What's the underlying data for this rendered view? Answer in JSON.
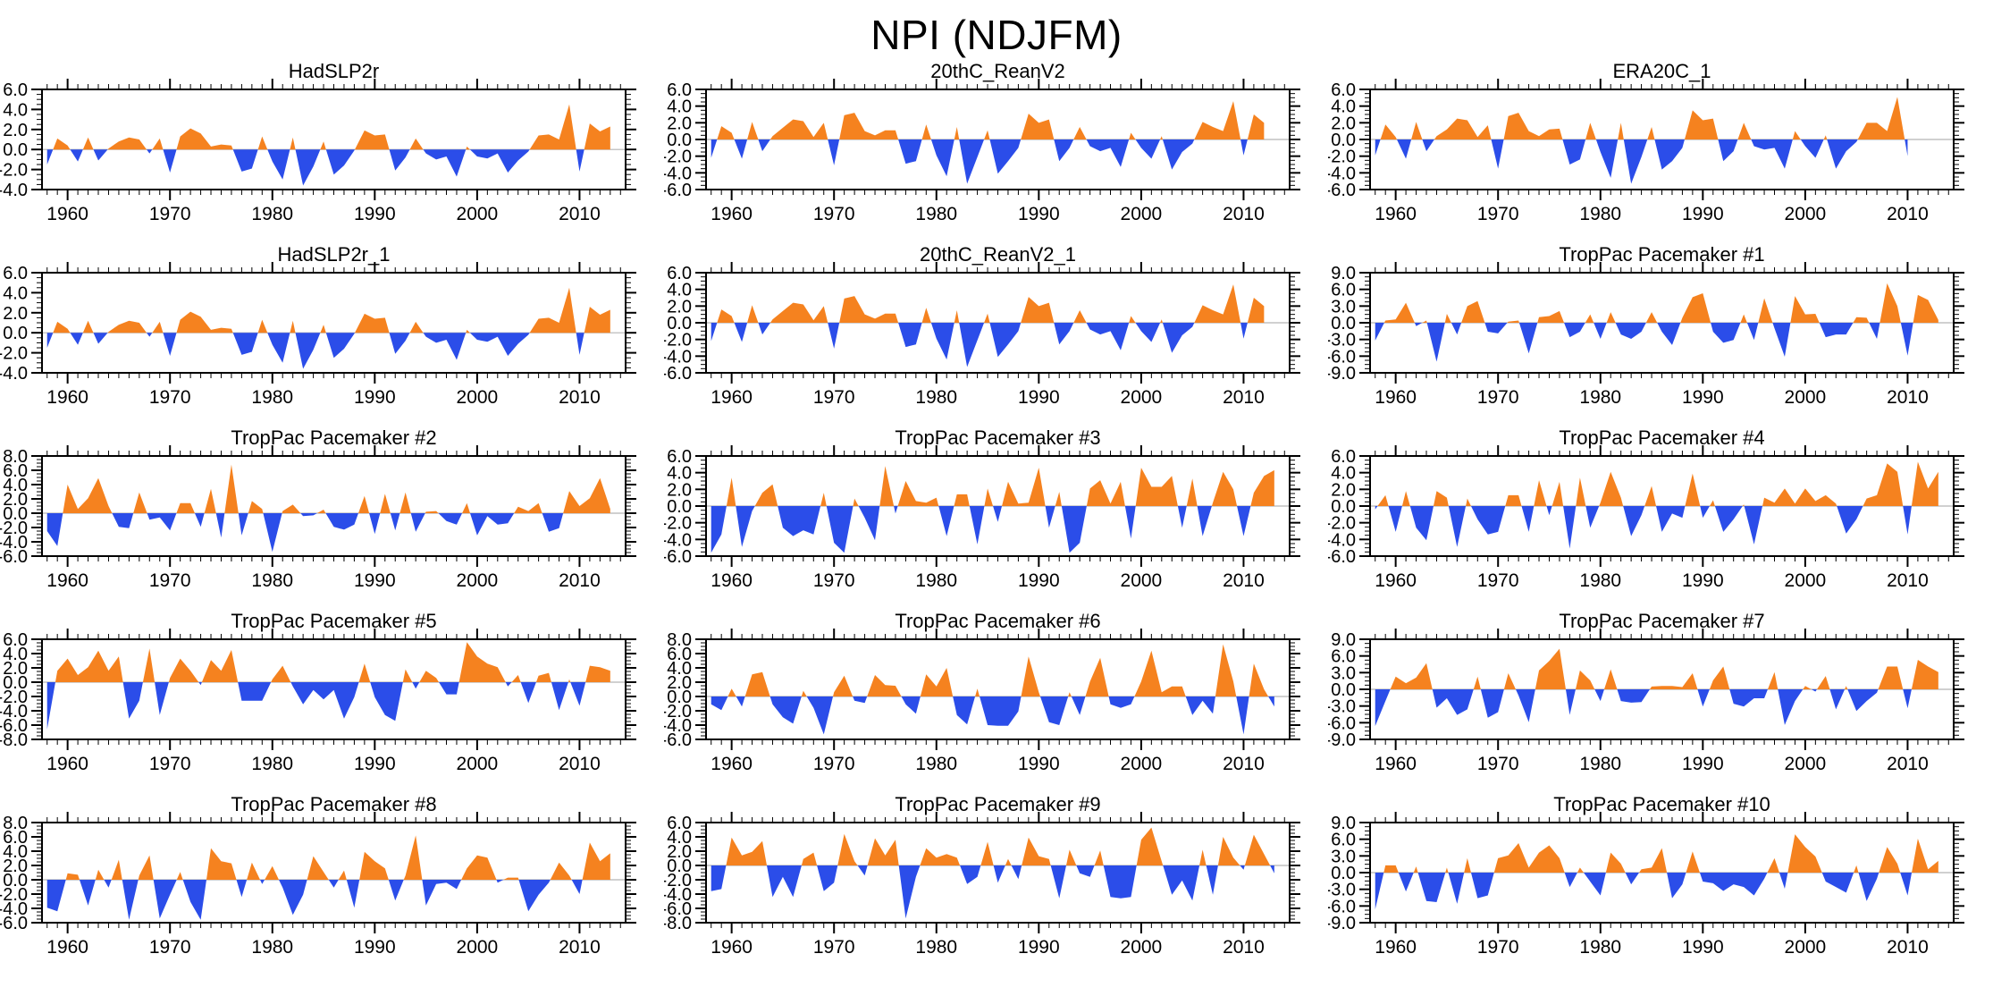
{
  "page_title": "NPI (NDJFM)",
  "colors": {
    "positive_fill": "#F5821F",
    "negative_fill": "#2B4DE9",
    "zero_line": "#b4b4b4",
    "frame": "#000000"
  },
  "axis": {
    "x_range": [
      1957.5,
      2014.5
    ],
    "x_major_ticks": [
      1960,
      1970,
      1980,
      1990,
      2000,
      2010
    ],
    "x_minor_step_years": 1
  },
  "chart_data": [
    {
      "type": "area",
      "title": "HadSLP2r",
      "start_year": 1958,
      "ylim": [
        -4,
        6
      ],
      "ytick_step": 2,
      "values": [
        -1.5,
        1.1,
        0.4,
        -1.2,
        1.2,
        -1.1,
        0.1,
        0.8,
        1.2,
        1.0,
        -0.4,
        1.1,
        -2.3,
        1.3,
        2.1,
        1.6,
        0.3,
        0.5,
        0.4,
        -2.2,
        -1.9,
        1.3,
        -1.2,
        -3.0,
        1.2,
        -3.6,
        -1.7,
        0.8,
        -2.5,
        -1.6,
        -0.1,
        1.9,
        1.4,
        1.5,
        -2.1,
        -0.8,
        1.1,
        -0.4,
        -1.0,
        -0.7,
        -2.7,
        0.3,
        -0.7,
        -0.9,
        -0.4,
        -2.3,
        -1.1,
        -0.2,
        1.4,
        1.5,
        1.0,
        4.5,
        -2.2,
        2.6,
        1.8,
        2.3
      ]
    },
    {
      "type": "area",
      "title": "20thC_ReanV2",
      "start_year": 1958,
      "ylim": [
        -6,
        6
      ],
      "ytick_step": 2,
      "values": [
        -2.2,
        1.6,
        0.8,
        -2.3,
        2.1,
        -1.4,
        0.4,
        1.4,
        2.4,
        2.2,
        0.3,
        2.0,
        -3.1,
        2.9,
        3.2,
        1.0,
        0.5,
        1.1,
        1.1,
        -2.9,
        -2.6,
        1.8,
        -1.9,
        -4.4,
        1.5,
        -5.3,
        -2.1,
        1.1,
        -4.1,
        -2.6,
        -1.0,
        3.1,
        2.0,
        2.4,
        -2.6,
        -1.0,
        1.5,
        -0.8,
        -1.4,
        -1.0,
        -3.3,
        0.8,
        -1.0,
        -2.3,
        0.4,
        -3.6,
        -1.5,
        -0.5,
        2.1,
        1.5,
        1.0,
        4.6,
        -1.9,
        3.0,
        2.0
      ]
    },
    {
      "type": "area",
      "title": "ERA20C_1",
      "start_year": 1958,
      "ylim": [
        -6,
        6
      ],
      "ytick_step": 2,
      "values": [
        -1.9,
        1.8,
        0.3,
        -2.3,
        2.1,
        -1.4,
        0.4,
        1.2,
        2.5,
        2.3,
        0.3,
        1.7,
        -3.5,
        2.8,
        3.2,
        1.0,
        0.4,
        1.2,
        1.3,
        -3.0,
        -2.4,
        2.0,
        -1.5,
        -4.6,
        2.0,
        -5.3,
        -2.1,
        1.5,
        -3.6,
        -2.6,
        -1.0,
        3.5,
        2.3,
        2.5,
        -2.6,
        -1.4,
        2.0,
        -0.8,
        -1.2,
        -1.0,
        -3.5,
        1.0,
        -0.8,
        -2.2,
        0.5,
        -3.5,
        -1.4,
        -0.3,
        2.0,
        2.0,
        1.0,
        5.1,
        -2.0
      ]
    },
    {
      "type": "area",
      "title": "HadSLP2r_1",
      "start_year": 1958,
      "ylim": [
        -4,
        6
      ],
      "ytick_step": 2,
      "values": [
        -1.5,
        1.1,
        0.4,
        -1.2,
        1.2,
        -1.1,
        0.1,
        0.8,
        1.2,
        1.0,
        -0.4,
        1.1,
        -2.3,
        1.3,
        2.1,
        1.6,
        0.3,
        0.5,
        0.4,
        -2.2,
        -1.9,
        1.3,
        -1.2,
        -3.0,
        1.2,
        -3.6,
        -1.7,
        0.8,
        -2.5,
        -1.6,
        -0.1,
        1.9,
        1.4,
        1.5,
        -2.1,
        -0.8,
        1.1,
        -0.4,
        -1.0,
        -0.7,
        -2.7,
        0.3,
        -0.7,
        -0.9,
        -0.4,
        -2.3,
        -1.1,
        -0.2,
        1.4,
        1.5,
        1.0,
        4.5,
        -2.2,
        2.6,
        1.8,
        2.3
      ]
    },
    {
      "type": "area",
      "title": "20thC_ReanV2_1",
      "start_year": 1958,
      "ylim": [
        -6,
        6
      ],
      "ytick_step": 2,
      "values": [
        -2.2,
        1.6,
        0.8,
        -2.3,
        2.1,
        -1.4,
        0.4,
        1.4,
        2.4,
        2.2,
        0.3,
        2.0,
        -3.1,
        2.9,
        3.2,
        1.0,
        0.5,
        1.1,
        1.1,
        -2.9,
        -2.6,
        1.8,
        -1.9,
        -4.4,
        1.5,
        -5.3,
        -2.1,
        1.1,
        -4.1,
        -2.6,
        -1.0,
        3.1,
        2.0,
        2.4,
        -2.6,
        -1.0,
        1.5,
        -0.8,
        -1.4,
        -1.0,
        -3.3,
        0.8,
        -1.0,
        -2.3,
        0.4,
        -3.6,
        -1.5,
        -0.5,
        2.1,
        1.5,
        1.0,
        4.6,
        -1.9,
        3.0,
        2.0
      ]
    },
    {
      "type": "area",
      "title": "TropPac Pacemaker #1",
      "start_year": 1958,
      "ylim": [
        -9,
        9
      ],
      "ytick_step": 3,
      "values": [
        -3.2,
        0.4,
        0.6,
        3.6,
        -0.6,
        0.4,
        -7.0,
        1.6,
        -2.1,
        3.0,
        3.9,
        -1.6,
        -1.9,
        0.2,
        0.4,
        -5.5,
        1.0,
        1.2,
        2.1,
        -2.6,
        -1.6,
        1.5,
        -2.9,
        1.9,
        -2.1,
        -2.9,
        -1.6,
        1.9,
        -1.6,
        -4.0,
        0.9,
        4.6,
        5.3,
        -1.6,
        -3.6,
        -3.1,
        1.5,
        -3.1,
        4.4,
        -1.0,
        -6.1,
        4.8,
        1.5,
        1.6,
        -2.6,
        -2.1,
        -2.1,
        1.0,
        0.9,
        -2.9,
        7.1,
        3.0,
        -5.9,
        5.0,
        4.1,
        0.5
      ]
    },
    {
      "type": "area",
      "title": "TropPac Pacemaker #2",
      "start_year": 1958,
      "ylim": [
        -6,
        8
      ],
      "ytick_step": 2,
      "values": [
        -2.5,
        -4.6,
        4.0,
        0.6,
        2.1,
        4.9,
        1.0,
        -1.9,
        -2.1,
        2.9,
        -0.9,
        -0.6,
        -2.4,
        1.4,
        1.4,
        -1.9,
        3.4,
        -3.4,
        6.8,
        -3.1,
        1.7,
        0.6,
        -5.4,
        0.3,
        1.2,
        -0.4,
        -0.3,
        0.5,
        -1.9,
        -2.3,
        -1.6,
        2.4,
        -2.9,
        2.7,
        -2.4,
        2.9,
        -2.6,
        0.2,
        0.3,
        -1.1,
        -1.6,
        1.4,
        -3.1,
        -0.4,
        -1.6,
        -1.4,
        0.9,
        0.3,
        1.4,
        -2.6,
        -2.1,
        3.1,
        1.0,
        2.1,
        4.9,
        0.6
      ]
    },
    {
      "type": "area",
      "title": "TropPac Pacemaker #3",
      "start_year": 1958,
      "ylim": [
        -6,
        6
      ],
      "ytick_step": 2,
      "values": [
        -5.6,
        -3.4,
        3.4,
        -4.9,
        -0.6,
        1.6,
        2.6,
        -2.6,
        -3.6,
        -2.9,
        -3.4,
        1.6,
        -4.4,
        -5.6,
        0.9,
        -1.4,
        -4.1,
        4.8,
        -0.9,
        3.0,
        0.6,
        0.4,
        1.0,
        -3.6,
        1.4,
        1.4,
        -4.6,
        2.1,
        -1.9,
        2.9,
        0.3,
        0.4,
        4.6,
        -2.6,
        1.7,
        -5.6,
        -4.4,
        2.1,
        3.1,
        0.3,
        2.9,
        -3.9,
        4.6,
        2.3,
        2.3,
        3.6,
        -2.6,
        3.3,
        -3.6,
        0.4,
        4.1,
        2.0,
        -3.6,
        1.6,
        3.6,
        4.3
      ]
    },
    {
      "type": "area",
      "title": "TropPac Pacemaker #4",
      "start_year": 1958,
      "ylim": [
        -6,
        6
      ],
      "ytick_step": 2,
      "values": [
        -0.4,
        1.3,
        -3.1,
        1.8,
        -2.6,
        -4.1,
        1.8,
        1.0,
        -4.9,
        0.9,
        -1.6,
        -3.4,
        -3.1,
        1.3,
        1.3,
        -3.1,
        3.1,
        -1.1,
        2.9,
        -5.1,
        3.4,
        -2.6,
        0.4,
        4.1,
        1.0,
        -3.6,
        -1.1,
        2.4,
        -3.1,
        -0.9,
        -1.4,
        3.9,
        -1.4,
        0.7,
        -3.1,
        -1.6,
        0.2,
        -4.6,
        1.0,
        0.4,
        2.1,
        0.3,
        2.1,
        0.6,
        1.3,
        0.3,
        -3.3,
        -1.6,
        0.9,
        1.3,
        5.1,
        4.1,
        -3.4,
        5.3,
        2.1,
        4.1
      ]
    },
    {
      "type": "area",
      "title": "TropPac Pacemaker #5",
      "start_year": 1958,
      "ylim": [
        -8,
        6
      ],
      "ytick_step": 2,
      "values": [
        -6.6,
        1.6,
        3.3,
        1.0,
        2.1,
        4.4,
        1.6,
        3.6,
        -5.1,
        -2.6,
        4.7,
        -4.6,
        0.6,
        3.3,
        1.6,
        -0.4,
        3.1,
        1.6,
        4.5,
        -2.6,
        -2.6,
        -2.6,
        0.4,
        2.3,
        -0.6,
        -3.1,
        -1.1,
        -2.4,
        -1.1,
        -5.1,
        -2.1,
        2.6,
        -2.1,
        -4.6,
        -5.4,
        1.8,
        -0.9,
        1.6,
        0.6,
        -1.7,
        -1.7,
        5.6,
        3.6,
        2.6,
        2.1,
        -0.6,
        1.0,
        -2.9,
        0.9,
        1.3,
        -3.9,
        0.4,
        -3.3,
        2.3,
        2.1,
        1.6
      ]
    },
    {
      "type": "area",
      "title": "TropPac Pacemaker #6",
      "start_year": 1958,
      "ylim": [
        -6,
        8
      ],
      "ytick_step": 2,
      "values": [
        -1.1,
        -1.9,
        1.1,
        -1.4,
        3.1,
        3.4,
        -1.1,
        -2.9,
        -3.8,
        0.8,
        -1.6,
        -5.3,
        0.6,
        2.9,
        -0.6,
        -0.9,
        3.0,
        1.6,
        1.5,
        -1.1,
        -2.4,
        3.1,
        1.4,
        4.0,
        -2.6,
        -3.9,
        1.1,
        -4.0,
        -4.1,
        -4.1,
        -2.1,
        5.6,
        0.6,
        -3.6,
        -4.0,
        0.6,
        -2.6,
        2.1,
        5.4,
        -1.1,
        -1.6,
        -1.1,
        2.1,
        6.4,
        0.6,
        1.4,
        1.4,
        -2.6,
        -0.6,
        -2.4,
        7.3,
        2.1,
        -5.3,
        4.6,
        1.0,
        -1.4
      ]
    },
    {
      "type": "area",
      "title": "TropPac Pacemaker #7",
      "start_year": 1958,
      "ylim": [
        -9,
        9
      ],
      "ytick_step": 3,
      "values": [
        -6.6,
        -2.1,
        2.3,
        1.1,
        2.1,
        4.7,
        -3.3,
        -1.6,
        -4.6,
        -3.6,
        2.3,
        -5.1,
        -4.1,
        2.9,
        -1.1,
        -5.9,
        3.4,
        5.1,
        7.3,
        -4.6,
        3.4,
        1.6,
        -2.1,
        3.6,
        -2.1,
        -2.4,
        -2.3,
        0.5,
        0.6,
        0.6,
        0.4,
        2.9,
        -3.1,
        1.6,
        4.1,
        -2.6,
        -3.1,
        -1.6,
        -1.6,
        3.1,
        -6.4,
        -2.1,
        0.6,
        -0.4,
        2.4,
        -3.6,
        0.6,
        -3.9,
        -2.1,
        -0.6,
        4.1,
        4.1,
        -3.4,
        5.3,
        4.1,
        3.1
      ]
    },
    {
      "type": "area",
      "title": "TropPac Pacemaker #8",
      "start_year": 1958,
      "ylim": [
        -6,
        8
      ],
      "ytick_step": 2,
      "values": [
        -3.9,
        -4.4,
        0.9,
        0.7,
        -3.6,
        1.4,
        -1.1,
        2.8,
        -5.6,
        0.6,
        3.4,
        -5.4,
        -2.1,
        1.1,
        -3.1,
        -5.6,
        4.4,
        2.6,
        2.3,
        -2.4,
        2.4,
        -0.6,
        1.9,
        -1.1,
        -4.9,
        -2.1,
        3.3,
        1.1,
        -1.1,
        1.3,
        -3.9,
        3.9,
        2.6,
        1.6,
        -2.9,
        0.6,
        6.2,
        -3.6,
        -0.6,
        -0.4,
        -1.3,
        1.6,
        3.4,
        3.1,
        -0.4,
        0.3,
        0.3,
        -4.4,
        -2.1,
        -0.4,
        2.4,
        0.6,
        -2.0,
        5.2,
        2.6,
        3.7
      ]
    },
    {
      "type": "area",
      "title": "TropPac Pacemaker #9",
      "start_year": 1958,
      "ylim": [
        -8,
        6
      ],
      "ytick_step": 2,
      "values": [
        -3.6,
        -3.3,
        3.9,
        1.4,
        1.9,
        3.4,
        -4.4,
        -1.6,
        -4.4,
        0.9,
        1.8,
        -3.6,
        -2.4,
        4.4,
        0.6,
        -1.4,
        3.8,
        1.4,
        3.6,
        -7.4,
        -1.6,
        2.4,
        1.1,
        1.6,
        1.1,
        -2.6,
        -1.6,
        3.3,
        -2.4,
        0.9,
        -1.9,
        3.9,
        1.3,
        0.9,
        -4.6,
        2.2,
        -1.1,
        -1.6,
        2.1,
        -4.4,
        -4.6,
        -4.4,
        3.6,
        5.3,
        0.6,
        -4.1,
        -2.1,
        -4.9,
        2.2,
        -4.1,
        4.0,
        1.1,
        -0.6,
        4.3,
        1.6,
        -1.1
      ]
    },
    {
      "type": "area",
      "title": "TropPac Pacemaker #10",
      "start_year": 1958,
      "ylim": [
        -9,
        9
      ],
      "ytick_step": 3,
      "values": [
        -6.6,
        1.3,
        1.3,
        -3.4,
        1.1,
        -5.1,
        -5.3,
        0.9,
        -5.6,
        2.6,
        -4.6,
        -4.1,
        2.6,
        3.1,
        5.3,
        0.9,
        3.6,
        4.9,
        2.6,
        -2.6,
        0.9,
        -1.6,
        -4.1,
        3.6,
        1.6,
        -2.1,
        0.6,
        0.9,
        4.4,
        -4.6,
        -2.1,
        3.8,
        -1.6,
        -1.9,
        -3.3,
        -2.1,
        -2.6,
        -4.1,
        -1.1,
        2.6,
        -2.9,
        6.9,
        4.6,
        2.9,
        -1.6,
        -2.6,
        -3.6,
        1.3,
        -5.1,
        -1.1,
        4.6,
        1.6,
        -4.1,
        6.1,
        0.6,
        2.1
      ]
    }
  ]
}
